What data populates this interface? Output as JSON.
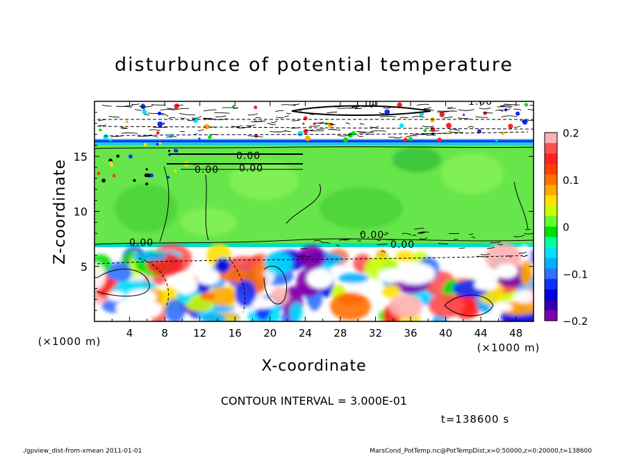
{
  "chart_data": {
    "type": "heatmap",
    "title": "disturbunce of potential temperature",
    "xlabel": "X-coordinate",
    "ylabel": "Z-coordinate",
    "x_unit": "(×1000 m)",
    "y_unit": "(×1000 m)",
    "xlim": [
      0,
      50
    ],
    "ylim": [
      0,
      20
    ],
    "x_ticks": [
      "4",
      "8",
      "12",
      "16",
      "20",
      "24",
      "28",
      "32",
      "36",
      "40",
      "44",
      "48"
    ],
    "y_ticks": [
      "5",
      "10",
      "15"
    ],
    "colorbar": {
      "range": [
        -0.2,
        0.2
      ],
      "tick_labels": [
        "0.2",
        "0.1",
        "0",
        "−0.1",
        "−0.2"
      ],
      "colors": [
        "#ffb0b0",
        "#ff5050",
        "#ff2020",
        "#ff4000",
        "#ff7000",
        "#ffaa00",
        "#ffe000",
        "#c8ff00",
        "#60ff30",
        "#00e000",
        "#00ffa0",
        "#00e0ff",
        "#00b0ff",
        "#3070ff",
        "#1030ff",
        "#0000e0",
        "#3000b0",
        "#8000b0"
      ]
    },
    "contour_labels": [
      "0.00",
      "0.00",
      "0.00",
      "0.00",
      "0.00",
      "0.00",
      "1.00",
      "1.00"
    ],
    "contour_interval": "CONTOUR INTERVAL = 3.000E-01",
    "time": "t=138600 s"
  },
  "footer": {
    "left": "./gpview_dist-from-xmean  2011-01-01",
    "right": "MarsCond_PotTemp.nc@PotTempDist,x=0:50000,z=0:20000,t=138600"
  }
}
